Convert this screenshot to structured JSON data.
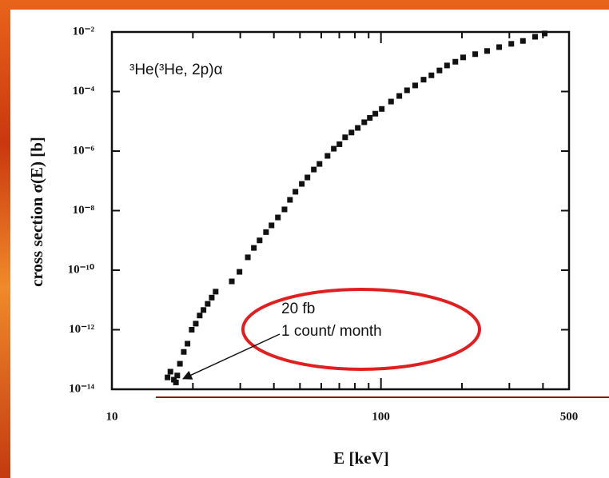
{
  "chart_data": {
    "type": "scatter",
    "title": "³He(³He, 2p)α",
    "x_label": "E [keV]",
    "y_label": "cross section σ(E) [b]",
    "x_log": true,
    "y_log": true,
    "color": "#111111",
    "xlim": [
      10,
      500
    ],
    "xticks": [
      10,
      100,
      500
    ],
    "x_minor_ticks": [
      20,
      30,
      40,
      50,
      60,
      70,
      80,
      90,
      200,
      300,
      400
    ],
    "ylim": [
      1e-14,
      0.01
    ],
    "yticks": [
      {
        "value": 1e-14,
        "label": "10⁻¹⁴"
      },
      {
        "value": 1e-12,
        "label": "10⁻¹²"
      },
      {
        "value": 1e-10,
        "label": "10⁻¹⁰"
      },
      {
        "value": 1e-08,
        "label": "10⁻⁸"
      },
      {
        "value": 1e-06,
        "label": "10⁻⁶"
      },
      {
        "value": 0.0001,
        "label": "10⁻⁴"
      },
      {
        "value": 0.01,
        "label": "10⁻²"
      }
    ],
    "annotations": [
      "20 fb",
      "1 count/ month"
    ],
    "annotation_target": {
      "x": 17.9,
      "y": 2e-14
    },
    "x": [
      16.1,
      16.5,
      17.0,
      17.3,
      17.5,
      17.9,
      18.5,
      19.1,
      19.8,
      20.5,
      21.2,
      21.9,
      22.7,
      23.5,
      24.3,
      27.9,
      29.8,
      32.0,
      33.7,
      35.4,
      37.4,
      39.2,
      41.4,
      43.8,
      45.9,
      48.1,
      50.8,
      53.3,
      56.3,
      59.1,
      63.3,
      66.8,
      70.1,
      73.6,
      77.7,
      82.0,
      86.7,
      90.9,
      95.3,
      100.7,
      109,
      117,
      125,
      134,
      144,
      154,
      165,
      176,
      189,
      202,
      224,
      248,
      275,
      305,
      337,
      374,
      406
    ],
    "values": [
      2.5e-14,
      3.9e-14,
      2.1e-14,
      1.7e-14,
      2.9e-14,
      7.2e-14,
      1.8e-13,
      3.4e-13,
      1e-12,
      1.6e-12,
      3e-12,
      4.6e-12,
      7.4e-12,
      1.2e-11,
      1.9e-11,
      4.2e-11,
      8.8e-11,
      2.7e-10,
      5.6e-10,
      1e-09,
      1.9e-09,
      3.2e-09,
      5.9e-09,
      1.1e-08,
      2.3e-08,
      4.3e-08,
      7.9e-08,
      1.3e-07,
      2.4e-07,
      3.7e-07,
      6.9e-07,
      1.2e-06,
      1.7e-06,
      2.9e-06,
      4.2e-06,
      6e-06,
      9.3e-06,
      1.3e-05,
      1.8e-05,
      2.6e-05,
      4.6e-05,
      7.1e-05,
      0.00011,
      0.00016,
      0.00025,
      0.00035,
      0.00051,
      0.00075,
      0.001,
      0.0014,
      0.0018,
      0.0023,
      0.0031,
      0.004,
      0.005,
      0.0069,
      0.0089
    ]
  }
}
